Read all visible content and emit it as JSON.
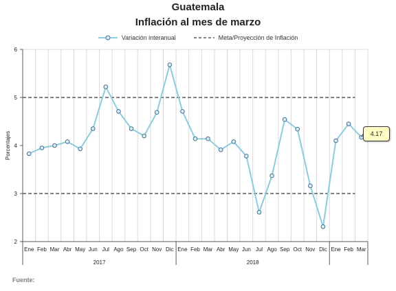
{
  "chart_data": {
    "type": "line",
    "title": "Guatemala",
    "subtitle": "Inflación al mes de marzo",
    "ylabel": "Porcentajes",
    "ylim": [
      2,
      6
    ],
    "yticks": [
      "2",
      "3",
      "4",
      "5",
      "6"
    ],
    "categories": [
      "Ene",
      "Feb",
      "Mar",
      "Abr",
      "May",
      "Jun",
      "Jul",
      "Ago",
      "Sep",
      "Oct",
      "Nov",
      "Dic",
      "Ene",
      "Feb",
      "Mar",
      "Abr",
      "May",
      "Jun",
      "Jul",
      "Ago",
      "Sep",
      "Oct",
      "Nov",
      "Dic",
      "Ene",
      "Feb",
      "Mar"
    ],
    "year_groups": [
      {
        "label": "2017",
        "start": 0,
        "end": 11
      },
      {
        "label": "2018",
        "start": 12,
        "end": 23
      },
      {
        "label": "",
        "start": 24,
        "end": 26
      }
    ],
    "series": [
      {
        "name": "Variación interanual",
        "color": "#8ecbdc",
        "values": [
          3.83,
          3.95,
          4.0,
          4.08,
          3.93,
          4.35,
          5.22,
          4.71,
          4.35,
          4.2,
          4.69,
          5.68,
          4.71,
          4.14,
          4.14,
          3.91,
          4.08,
          3.78,
          2.61,
          3.37,
          4.54,
          4.34,
          3.16,
          2.31,
          4.1,
          4.45,
          4.17
        ]
      }
    ],
    "reference_lines": [
      {
        "name": "Meta/Proyección de Inflación",
        "color": "#595959",
        "values": [
          3,
          5
        ],
        "x_end_index": 26
      }
    ],
    "callout": {
      "label": "4.17",
      "index": 26
    },
    "grid": true,
    "legend_position": "top"
  },
  "footer": {
    "source_label": "Fuente:"
  }
}
